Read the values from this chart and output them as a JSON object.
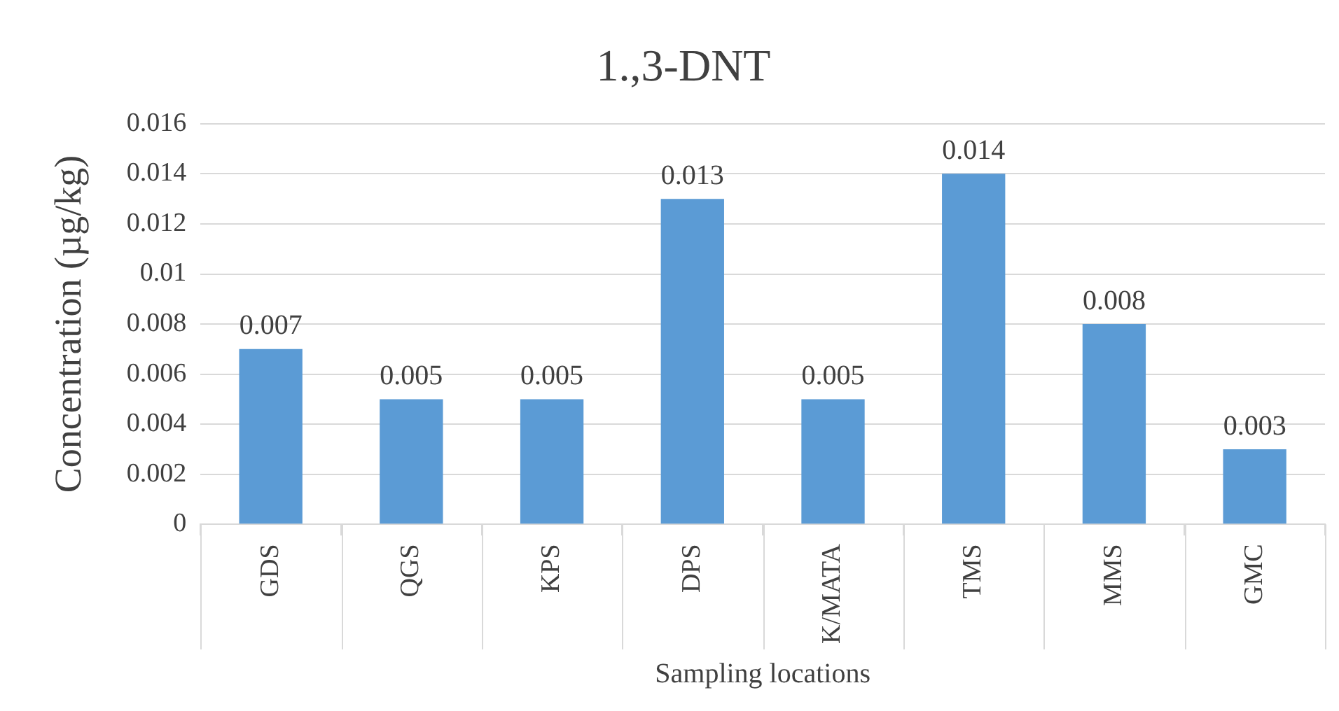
{
  "chart_data": {
    "type": "bar",
    "title": "1.,3-DNT",
    "xlabel": "Sampling locations",
    "ylabel": "Concentration (µg/kg)",
    "categories": [
      "GDS",
      "QGS",
      "KPS",
      "DPS",
      "K/MATA",
      "TMS",
      "MMS",
      "GMC"
    ],
    "values": [
      0.007,
      0.005,
      0.005,
      0.013,
      0.005,
      0.014,
      0.008,
      0.003
    ],
    "color": "#5b9bd5",
    "ylim": [
      0,
      0.016
    ],
    "yticks": [
      0,
      0.002,
      0.004,
      0.006,
      0.008,
      0.01,
      0.012,
      0.014,
      0.016
    ],
    "grid": "y",
    "data_labels": true,
    "legend": false
  }
}
